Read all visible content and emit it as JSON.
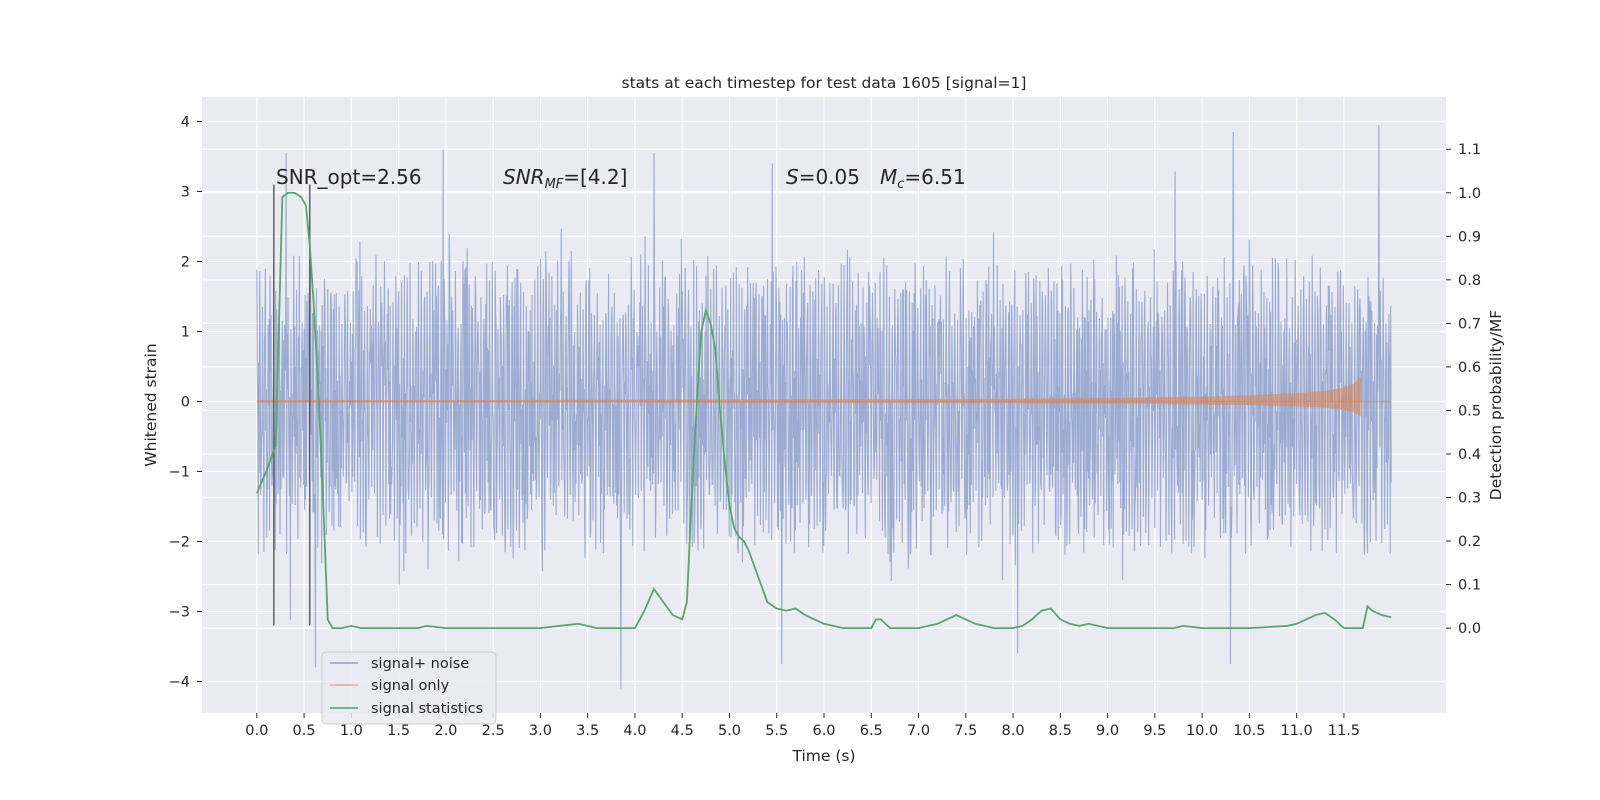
{
  "chart_data": {
    "type": "line",
    "title": "stats at each timestep for test data 1605 [signal=1]",
    "xlabel": "Time (s)",
    "ylabel": "Whitened strain",
    "ylabel_right": "Detection probability/MF",
    "xlim": [
      -0.58,
      12.58
    ],
    "ylim": [
      -4.45,
      4.35
    ],
    "ylim_right": [
      -0.195,
      1.22
    ],
    "x_ticks": [
      "0.0",
      "0.5",
      "1.0",
      "1.5",
      "2.0",
      "2.5",
      "3.0",
      "3.5",
      "4.0",
      "4.5",
      "5.0",
      "5.5",
      "6.0",
      "6.5",
      "7.0",
      "7.5",
      "8.0",
      "8.5",
      "9.0",
      "9.5",
      "10.0",
      "10.5",
      "11.0",
      "11.5"
    ],
    "y_ticks": [
      "4",
      "3",
      "2",
      "1",
      "0",
      "−1",
      "−2",
      "−3",
      "−4"
    ],
    "y_ticks_right": [
      "1.1",
      "1.0",
      "0.9",
      "0.8",
      "0.7",
      "0.6",
      "0.5",
      "0.4",
      "0.3",
      "0.2",
      "0.1",
      "0.0"
    ],
    "grid": true,
    "legend_position": "lower-left",
    "background": "#eaeaf2",
    "colors": {
      "noise": "#8da0cb",
      "signal": "#dd8452",
      "stats": "#55a868",
      "vline": "#4d4d4d"
    },
    "annotations": {
      "snr_opt": "SNR_opt=2.56",
      "snr_mf_prefix": "SNR",
      "snr_mf_sub": "MF",
      "snr_mf_value": "=[4.2]",
      "s_symbol": "S",
      "s_value": "=0.05",
      "mc_symbol": "M",
      "mc_sub": "c",
      "mc_value": "=6.51"
    },
    "vertical_lines": [
      0.18,
      0.56
    ],
    "series": [
      {
        "name": "signal+ noise",
        "axis": "left",
        "x_range": [
          0.0,
          12.0
        ],
        "envelope": {
          "typical_upper": 2.2,
          "typical_lower": -2.3,
          "max": 3.95,
          "min": -4.1
        },
        "peaks": [
          {
            "x": 0.31,
            "y": 3.55
          },
          {
            "x": 0.62,
            "y": -3.8
          },
          {
            "x": 1.97,
            "y": 3.6
          },
          {
            "x": 3.85,
            "y": -4.1
          },
          {
            "x": 4.2,
            "y": 3.55
          },
          {
            "x": 10.33,
            "y": 3.85
          },
          {
            "x": 10.3,
            "y": -3.75
          },
          {
            "x": 11.87,
            "y": 3.95
          },
          {
            "x": 5.55,
            "y": -3.75
          },
          {
            "x": 8.05,
            "y": -3.6
          },
          {
            "x": 5.45,
            "y": 3.4
          }
        ]
      },
      {
        "name": "signal only",
        "axis": "left",
        "x": [
          0.0,
          2.0,
          4.0,
          6.0,
          8.0,
          9.0,
          10.0,
          10.5,
          11.0,
          11.3,
          11.5,
          11.6,
          11.68
        ],
        "amplitude": [
          0.02,
          0.02,
          0.025,
          0.03,
          0.04,
          0.05,
          0.07,
          0.09,
          0.12,
          0.15,
          0.2,
          0.25,
          0.35
        ]
      },
      {
        "name": "signal statistics",
        "axis": "right",
        "x": [
          0.0,
          0.1,
          0.2,
          0.27,
          0.33,
          0.4,
          0.47,
          0.52,
          0.56,
          0.6,
          0.65,
          0.7,
          0.75,
          0.8,
          0.9,
          1.0,
          1.1,
          1.3,
          1.5,
          1.7,
          1.8,
          2.0,
          2.5,
          3.0,
          3.2,
          3.4,
          3.6,
          4.0,
          4.1,
          4.2,
          4.3,
          4.4,
          4.5,
          4.55,
          4.6,
          4.65,
          4.7,
          4.75,
          4.8,
          4.85,
          4.9,
          4.95,
          5.0,
          5.05,
          5.1,
          5.15,
          5.2,
          5.3,
          5.4,
          5.5,
          5.6,
          5.7,
          5.8,
          6.0,
          6.2,
          6.5,
          6.55,
          6.6,
          6.65,
          6.7,
          6.8,
          7.0,
          7.2,
          7.3,
          7.4,
          7.5,
          7.6,
          7.8,
          8.0,
          8.1,
          8.2,
          8.3,
          8.4,
          8.5,
          8.6,
          8.7,
          8.8,
          9.0,
          9.5,
          9.7,
          9.8,
          10.0,
          10.5,
          10.9,
          11.0,
          11.1,
          11.2,
          11.3,
          11.4,
          11.5,
          11.7,
          11.75,
          11.8,
          11.9,
          12.0
        ],
        "values": [
          0.31,
          0.36,
          0.42,
          0.99,
          1.0,
          1.0,
          0.99,
          0.97,
          0.88,
          0.75,
          0.55,
          0.3,
          0.02,
          0.0,
          0.0,
          0.005,
          0.0,
          0.0,
          0.0,
          0.0,
          0.005,
          0.0,
          0.0,
          0.0,
          0.005,
          0.01,
          0.0,
          0.0,
          0.04,
          0.09,
          0.06,
          0.03,
          0.02,
          0.06,
          0.3,
          0.5,
          0.68,
          0.73,
          0.7,
          0.64,
          0.5,
          0.38,
          0.28,
          0.23,
          0.21,
          0.2,
          0.18,
          0.12,
          0.06,
          0.045,
          0.04,
          0.045,
          0.03,
          0.01,
          0.0,
          0.0,
          0.02,
          0.02,
          0.01,
          0.0,
          0.0,
          0.0,
          0.01,
          0.02,
          0.03,
          0.02,
          0.01,
          0.0,
          0.0,
          0.005,
          0.02,
          0.04,
          0.045,
          0.02,
          0.01,
          0.005,
          0.01,
          0.0,
          0.0,
          0.0,
          0.005,
          0.0,
          0.0,
          0.005,
          0.01,
          0.02,
          0.03,
          0.035,
          0.02,
          0.0,
          0.0,
          0.05,
          0.04,
          0.03,
          0.025
        ]
      }
    ]
  }
}
